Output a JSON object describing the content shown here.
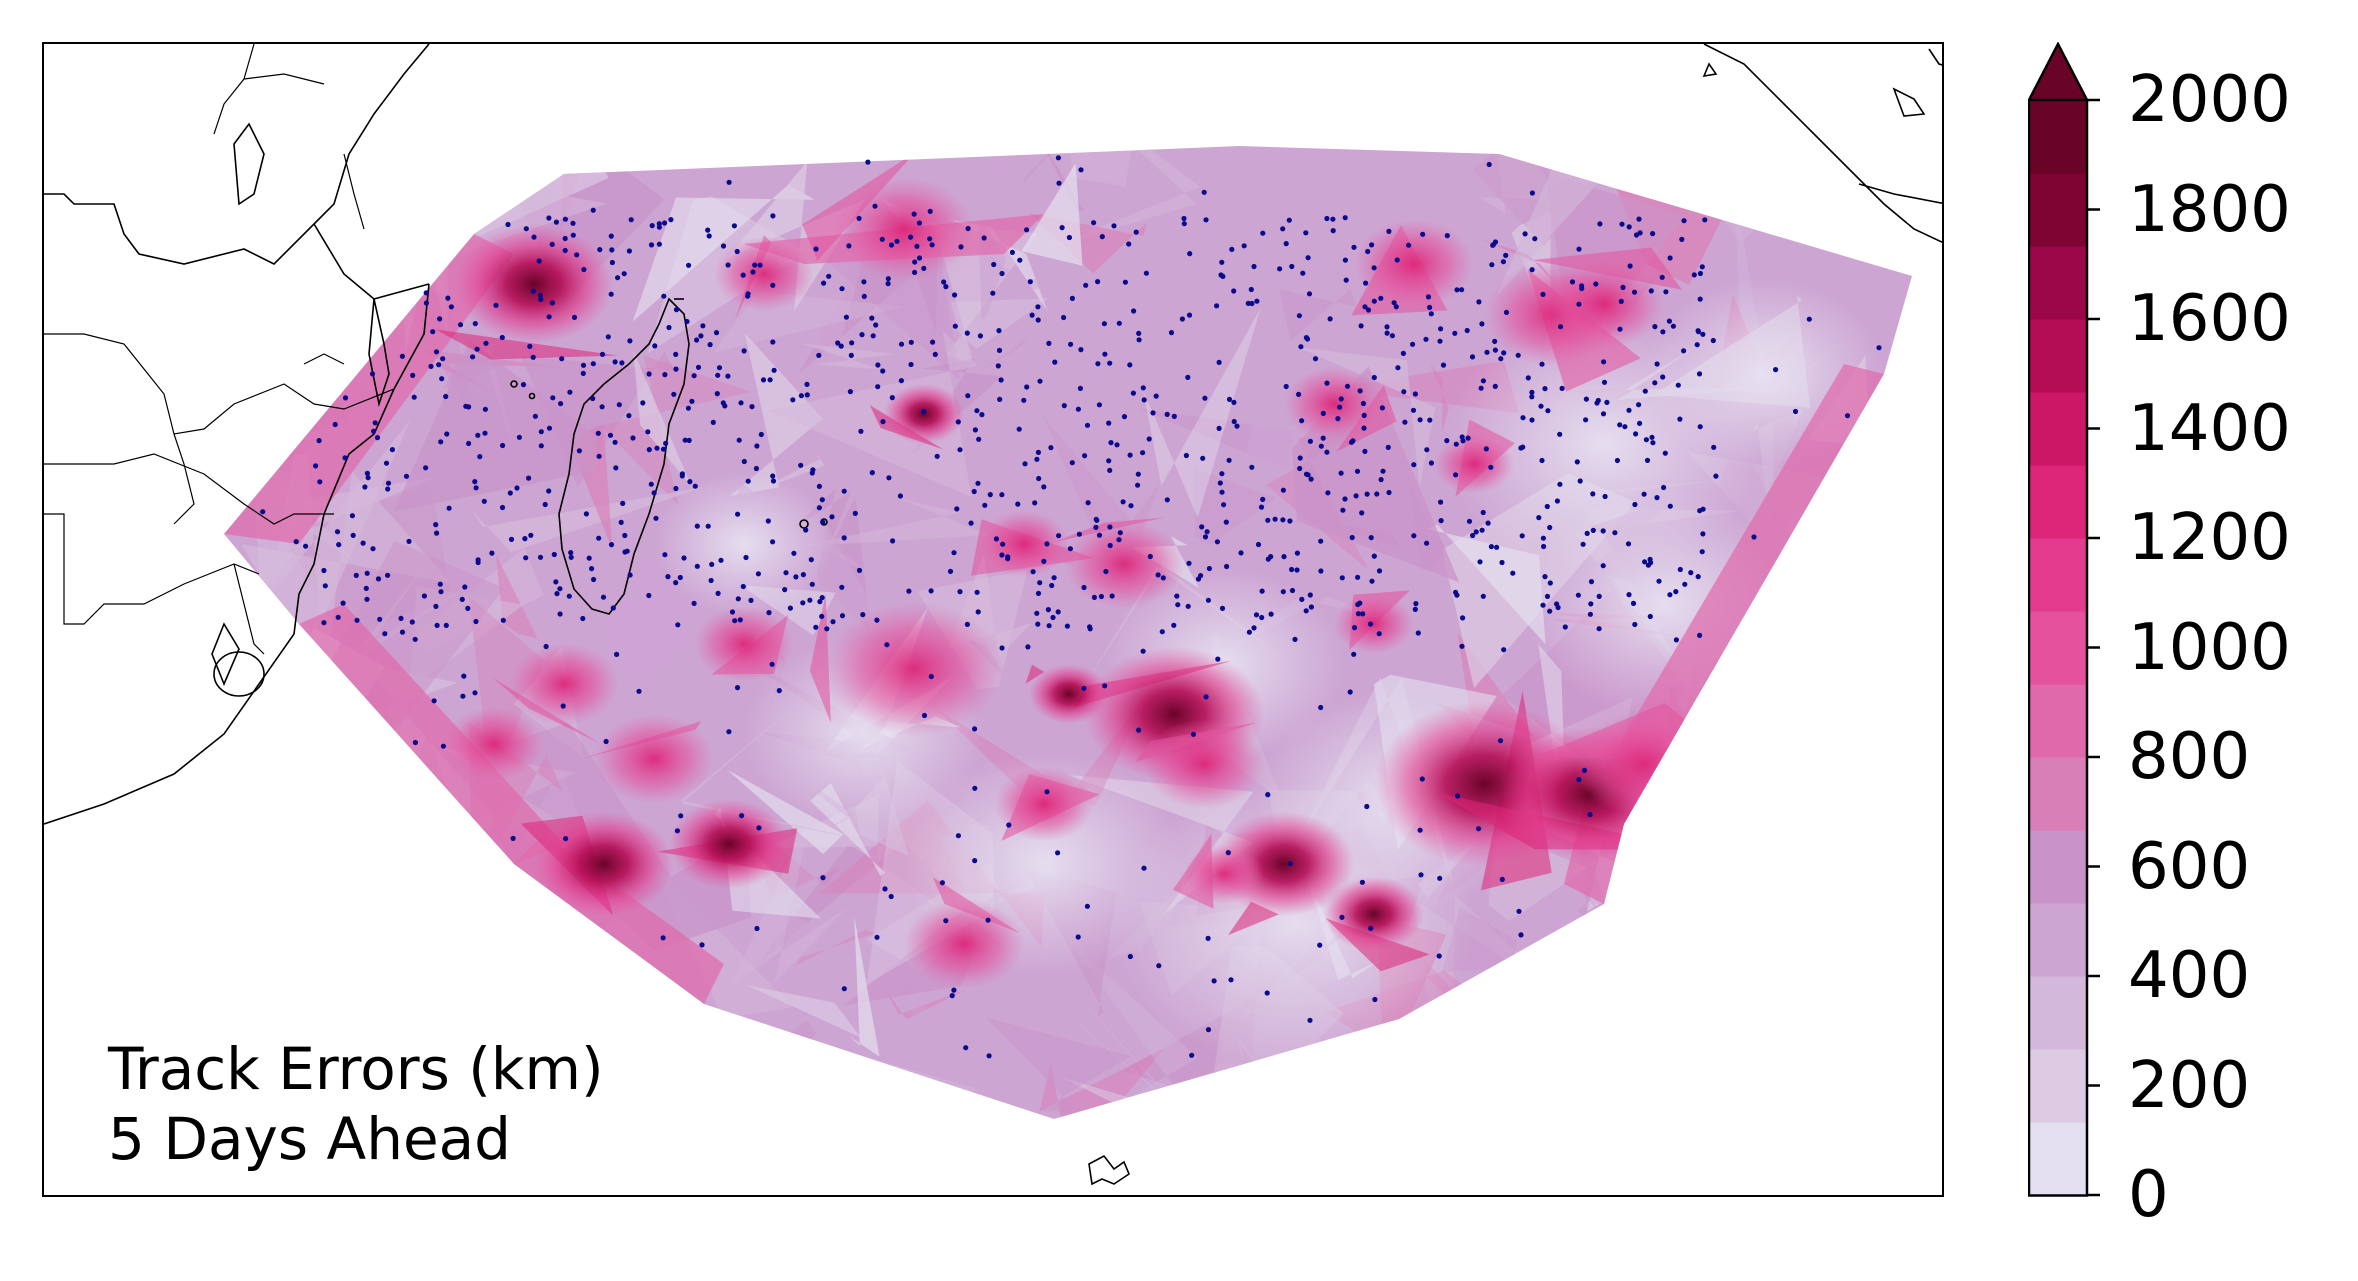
{
  "map": {
    "caption_line1": "Track Errors (km)",
    "caption_line2": "5 Days Ahead"
  },
  "colorbar": {
    "min": 0,
    "max": 2000,
    "extend": "max",
    "ticks": [
      "0",
      "200",
      "400",
      "600",
      "800",
      "1000",
      "1200",
      "1400",
      "1600",
      "1800",
      "2000"
    ],
    "colors": [
      "#e4e0ef",
      "#dccbe3",
      "#d4b8da",
      "#cda5d3",
      "#c993c8",
      "#d97fb7",
      "#df69ab",
      "#e4529d",
      "#e33b8d",
      "#dd2679",
      "#cc1666",
      "#b50d55",
      "#9c0847",
      "#7e0434",
      "#6a0328"
    ]
  },
  "colors": {
    "observation_points": "#0a0a8c",
    "coastline": "#000000",
    "low_error": "#e4e0ef",
    "high_error": "#6a0328"
  }
}
